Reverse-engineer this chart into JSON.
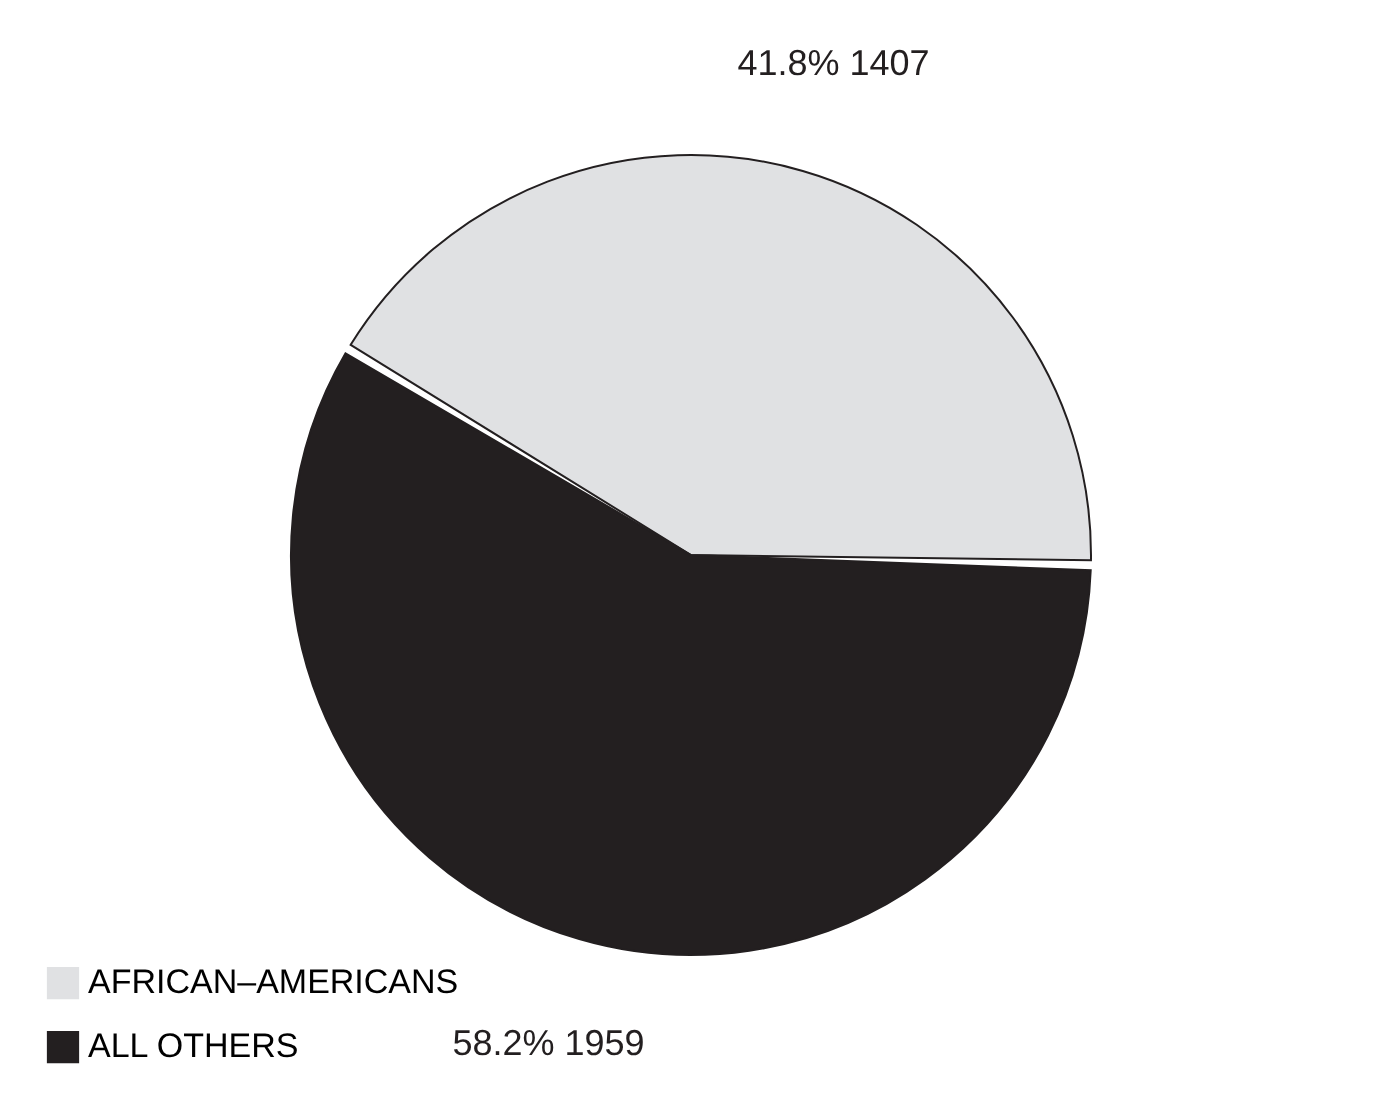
{
  "chart_data": {
    "type": "pie",
    "categories": [
      "AFRICAN–AMERICANS",
      "ALL OTHERS"
    ],
    "values": [
      1407,
      1959
    ],
    "colors": [
      "#e0e1e3",
      "#231f20"
    ],
    "value_labels": [
      "41.8%  1407",
      "58.2%  1959"
    ],
    "legend": "bottom left"
  }
}
